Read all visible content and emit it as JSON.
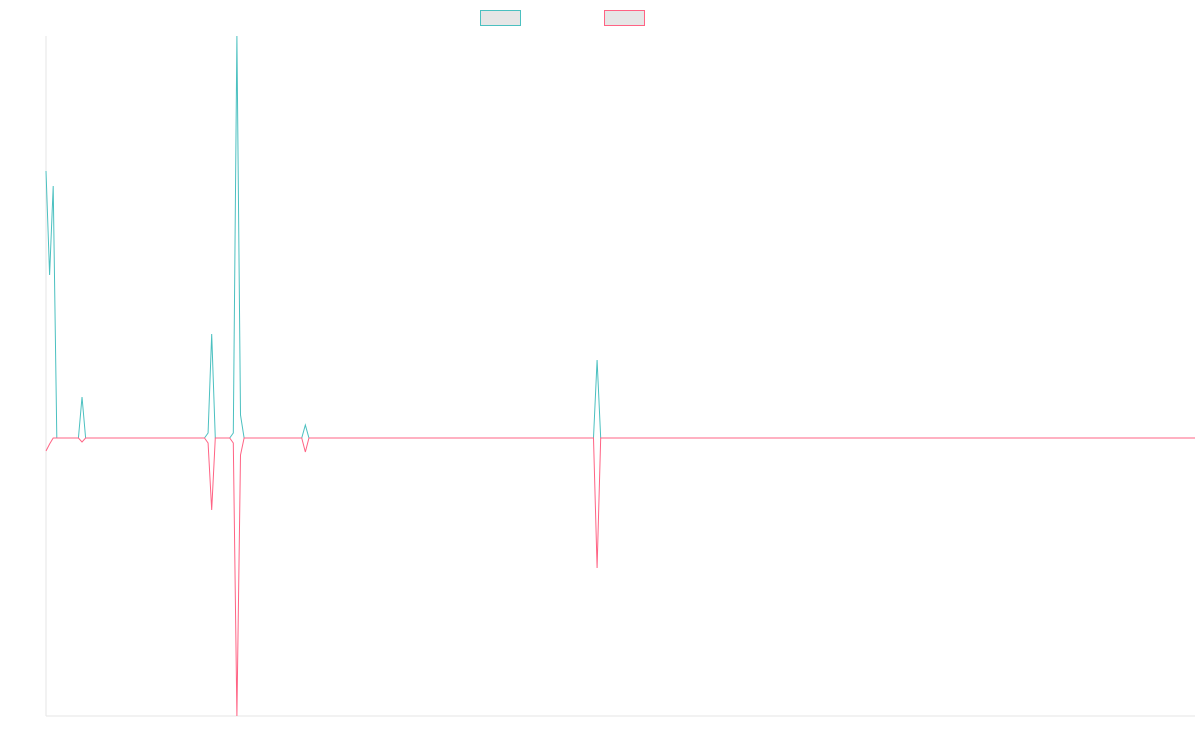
{
  "chart_data": {
    "type": "line",
    "x": [
      0,
      1,
      2,
      3,
      9,
      10,
      11,
      44,
      45,
      46,
      47,
      51,
      52,
      53,
      54,
      55,
      71,
      72,
      73,
      152,
      153,
      154,
      319
    ],
    "xlim": [
      0,
      319
    ],
    "ylim": [
      -2.78,
      4.02
    ],
    "series": [
      {
        "color": "#4bc0c0",
        "values": [
          2.67,
          1.63,
          2.52,
          0,
          0,
          0.41,
          0,
          0,
          0.05,
          1.04,
          0,
          0,
          0.05,
          4.02,
          0.23,
          0,
          0,
          0.13,
          0,
          0,
          0.78,
          0,
          0
        ]
      },
      {
        "color": "#ff6384",
        "values": [
          -0.13,
          -0.06,
          0,
          0,
          0,
          -0.04,
          0,
          0,
          -0.05,
          -0.72,
          0,
          0,
          -0.05,
          -2.78,
          -0.17,
          0,
          0,
          -0.14,
          0,
          0,
          -1.3,
          0,
          0
        ]
      }
    ],
    "legend": "top",
    "grid": false
  }
}
